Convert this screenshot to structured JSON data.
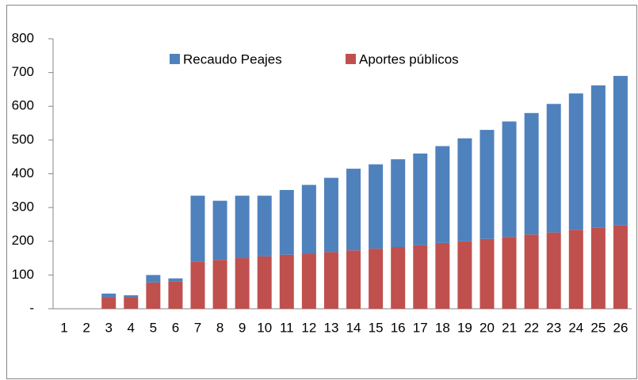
{
  "chart_data": {
    "type": "stacked_bar",
    "categories": [
      "1",
      "2",
      "3",
      "4",
      "5",
      "6",
      "7",
      "8",
      "9",
      "10",
      "11",
      "12",
      "13",
      "14",
      "15",
      "16",
      "17",
      "18",
      "19",
      "20",
      "21",
      "22",
      "23",
      "24",
      "25",
      "26"
    ],
    "series": [
      {
        "name": "Recaudo Peajes",
        "color": "#4f81bd",
        "values": [
          0,
          0,
          10,
          5,
          22,
          10,
          195,
          175,
          185,
          180,
          192,
          204,
          220,
          242,
          250,
          260,
          272,
          287,
          305,
          323,
          342,
          360,
          381,
          404,
          422,
          443
        ]
      },
      {
        "name": "Aportes públicos",
        "color": "#c0504d",
        "values": [
          0,
          0,
          35,
          35,
          78,
          80,
          140,
          145,
          150,
          155,
          160,
          163,
          168,
          173,
          178,
          183,
          188,
          195,
          200,
          207,
          213,
          220,
          226,
          234,
          240,
          247
        ]
      }
    ],
    "ylim": [
      0,
      800
    ],
    "yticks": [
      {
        "value": 0,
        "label": "-"
      },
      100,
      200,
      300,
      400,
      500,
      600,
      700,
      800
    ],
    "grid": false,
    "legend": "top"
  }
}
